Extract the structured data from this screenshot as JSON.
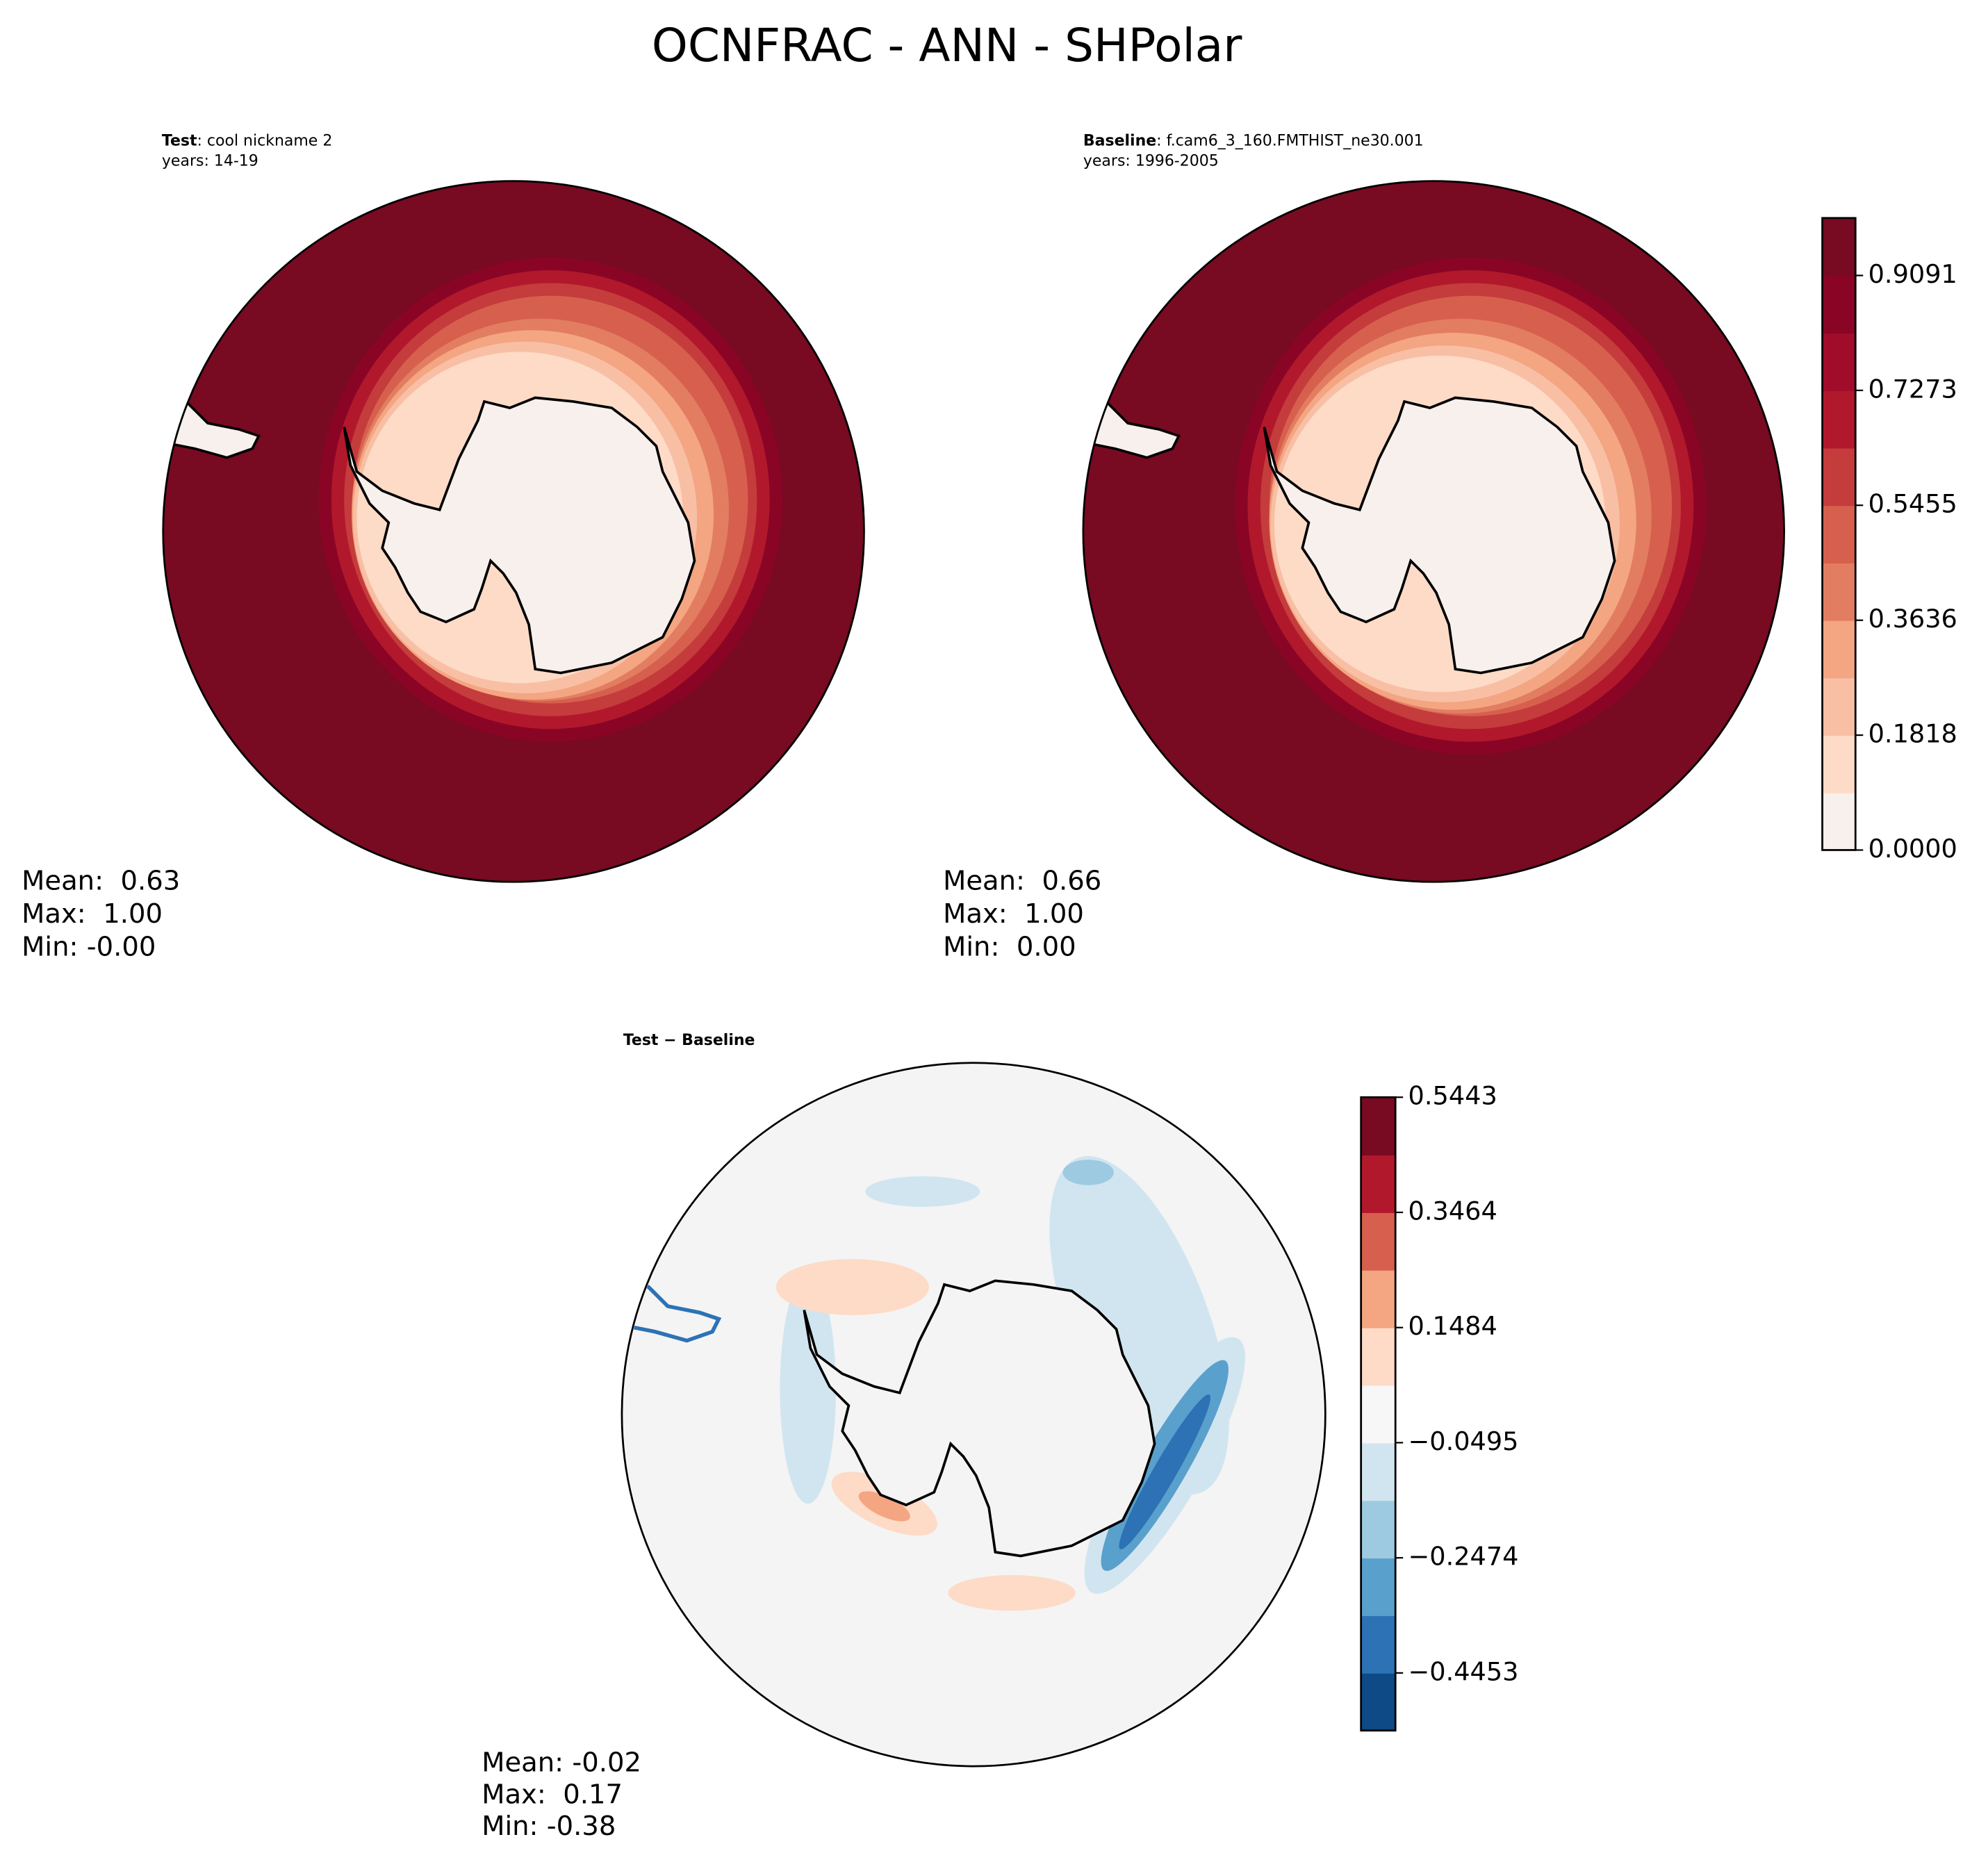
{
  "title": "OCNFRAC - ANN - SHPolar",
  "panels": [
    {
      "heading_bold": "Test",
      "heading_rest": ": cool nickname 2",
      "years": "years: 14-19",
      "stats": [
        "Mean:  0.63",
        "Max:  1.00",
        "Min: -0.00"
      ]
    },
    {
      "heading_bold": "Baseline",
      "heading_rest": ": f.cam6_3_160.FMTHIST_ne30.001",
      "years": "years: 1996-2005",
      "stats": [
        "Mean:  0.66",
        "Max:  1.00",
        "Min:  0.00"
      ]
    },
    {
      "heading_bold": "Test − Baseline",
      "stats": [
        "Mean: -0.02",
        "Max:  0.17",
        "Min: -0.38"
      ]
    }
  ],
  "colorbars": [
    {
      "lim": [
        0,
        1
      ],
      "colors": [
        "#f7f0ec",
        "#fddbc7",
        "#f8bfa4",
        "#f4a582",
        "#e27d62",
        "#d6604d",
        "#c43c3c",
        "#b2182b",
        "#a10c2b",
        "#8a0525",
        "#780a22"
      ],
      "ticks": [
        {
          "value": 0,
          "label": "0.0000"
        },
        0.1818,
        0.3636,
        0.5455,
        0.7273,
        0.9091
      ]
    },
    {
      "lim": [
        -0.5443,
        0.5443
      ],
      "colors": [
        "#0e4a85",
        "#2c72b5",
        "#5aa0cc",
        "#9dcae1",
        "#d1e5f0",
        "#f7f7f7",
        "#fddbc7",
        "#f4a582",
        "#d6604d",
        "#b2182b",
        "#780a22"
      ],
      "ticks": [
        {
          "value": -0.4453,
          "label": "−0.4453"
        },
        {
          "value": -0.2474,
          "label": "−0.2474"
        },
        {
          "value": -0.0495,
          "label": "−0.0495"
        },
        0.1484,
        0.3464,
        0.5443
      ]
    }
  ]
}
